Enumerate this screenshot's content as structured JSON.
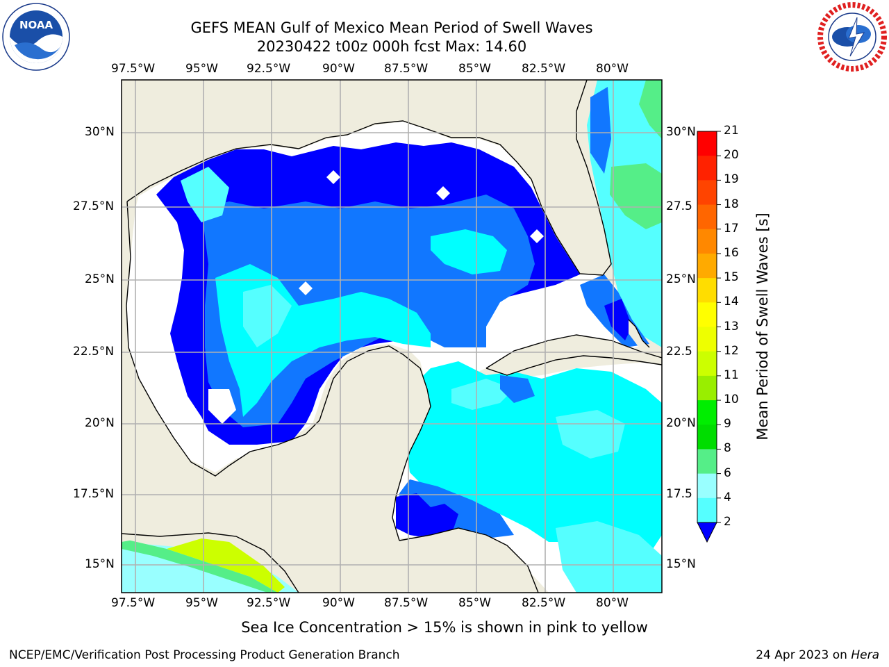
{
  "title": {
    "line1": "GEFS MEAN Gulf of Mexico Mean Period of Swell Waves",
    "line2": "20230422 t00z 000h fcst   Max: 14.60"
  },
  "logos": {
    "left": "NOAA",
    "right": "NATIONAL WEATHER SERVICE",
    "left_ring_text": "NATIONAL OCEANIC AND ATMOSPHERIC ADMINISTRATION"
  },
  "axes": {
    "lon_ticks": [
      "97.5°W",
      "95°W",
      "92.5°W",
      "90°W",
      "87.5°W",
      "85°W",
      "82.5°W",
      "80°W"
    ],
    "lat_ticks_left": [
      "30°N",
      "27.5°N",
      "25°N",
      "22.5°N",
      "20°N",
      "17.5°N",
      "15°N"
    ],
    "lat_ticks_right": [
      "30°N",
      "27.5",
      "25°N",
      "22.5",
      "20°N",
      "17.5",
      "15°N"
    ]
  },
  "colorbar": {
    "label": "Mean Period of Swell Waves [s]",
    "ticks": [
      "21",
      "20",
      "19",
      "18",
      "17",
      "16",
      "15",
      "14",
      "13",
      "12",
      "11",
      "10",
      "9",
      "8",
      "6",
      "4",
      "2"
    ],
    "colors": [
      "#ff0000",
      "#ff2200",
      "#ff4400",
      "#ff6600",
      "#ff8800",
      "#ffaa00",
      "#ffdd00",
      "#ffff00",
      "#eeff00",
      "#ccff00",
      "#99ee00",
      "#00ee00",
      "#00dd00",
      "#55ee88",
      "#99ffff",
      "#55ffff",
      "#00ffff",
      "#1177ff"
    ],
    "under_color": "#0000ff"
  },
  "map_colors": {
    "land": "#efedde",
    "white_mask": "#ffffff",
    "blue_2": "#0000ff",
    "blue_4": "#1177ff",
    "cyan_6": "#00ffff",
    "cyan_8": "#55ffff",
    "cyan_9": "#99ffff",
    "green": "#55ee88",
    "yellow_green": "#ccff00",
    "grid": "#b0b0b0"
  },
  "footer": {
    "note": "Sea Ice Concentration > 15% is shown in pink to yellow",
    "left": "NCEP/EMC/Verification Post Processing Product Generation Branch",
    "right_date": "24 Apr 2023 on ",
    "right_host": "Hera"
  }
}
